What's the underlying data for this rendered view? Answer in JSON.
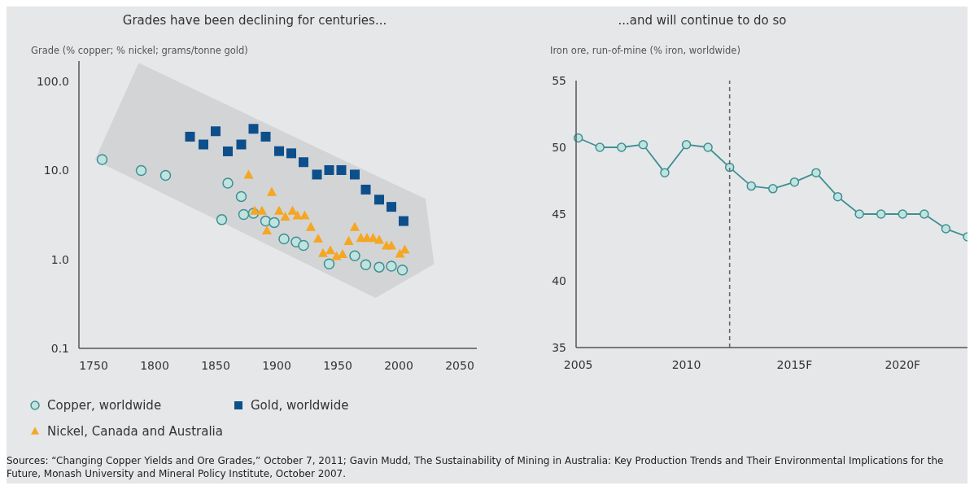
{
  "chart_data": [
    {
      "type": "scatter",
      "title": "Grades have been declining for centuries...",
      "ylabel": "Grade (% copper; % nickel; grams/tonne gold)",
      "log": "y",
      "xlim": [
        1738,
        2064
      ],
      "xticks": [
        1750,
        1800,
        1850,
        1900,
        1950,
        2000,
        2050
      ],
      "ylim": [
        0.1,
        170
      ],
      "yticks": [
        {
          "value": 100,
          "label": "100.0"
        },
        {
          "value": 10,
          "label": "10.0"
        },
        {
          "value": 1,
          "label": "1.0"
        },
        0.1
      ],
      "grid": false,
      "legend": "bottom left",
      "series": [
        {
          "type": "area",
          "color": "#d3d4d6",
          "x": [
            1751,
            1787,
            1981,
            2022,
            2029
          ],
          "values": [
            null,
            null,
            null,
            null,
            null
          ],
          "lower": [
            13.1,
            7.5,
            0.37,
            0.78,
            0.89
          ],
          "upper": [
            13.1,
            162,
            8.8,
            4.8,
            0.89
          ]
        },
        {
          "name": "Copper, worldwide",
          "color": "#3f8f93",
          "marker": "circle",
          "x": [
            1757,
            1789,
            1809,
            1860,
            1871,
            1855,
            1873,
            1881,
            1891,
            1898,
            1906,
            1916,
            1922,
            1943,
            1964,
            1973,
            1984,
            1994,
            2003
          ],
          "values": [
            13.3,
            10,
            8.8,
            7.2,
            5.1,
            2.8,
            3.2,
            3.3,
            2.7,
            2.6,
            1.7,
            1.57,
            1.44,
            0.89,
            1.1,
            0.87,
            0.82,
            0.84,
            0.76
          ]
        },
        {
          "name": "Gold, worldwide",
          "color": "#0d4f8b",
          "marker": "square",
          "x": [
            1829,
            1840,
            1850,
            1860,
            1871,
            1881,
            1891,
            1902,
            1912,
            1922,
            1933,
            1943,
            1953,
            1964,
            1973,
            1984,
            1994,
            2004
          ],
          "values": [
            24,
            19.6,
            27.6,
            16.4,
            19.6,
            29.4,
            24,
            16.5,
            15.6,
            12.4,
            9,
            10.1,
            10.1,
            9,
            6.1,
            4.7,
            3.9,
            2.7
          ]
        },
        {
          "name": "Nickel, Canada and Australia",
          "color": "#f5a623",
          "marker": "triangle",
          "x": [
            1877,
            1896,
            1882,
            1888,
            1892,
            1902,
            1907,
            1913,
            1917,
            1923,
            1928,
            1934,
            1938,
            1944,
            1949,
            1954,
            1959,
            1964,
            1969,
            1974,
            1979,
            1984,
            1990,
            1994,
            2001,
            2005
          ],
          "values": [
            8.9,
            5.7,
            3.5,
            3.5,
            2.1,
            3.5,
            3,
            3.5,
            3.1,
            3.1,
            2.3,
            1.7,
            1.17,
            1.26,
            1.08,
            1.14,
            1.6,
            2.3,
            1.73,
            1.73,
            1.73,
            1.65,
            1.42,
            1.42,
            1.15,
            1.28
          ]
        }
      ],
      "annotations": [
        "Sources: “Changing Copper Yields and Ore Grades,” October 7, 2011; Gavin Mudd, The Sustainability of Mining in Australia: Key Production Trends and Their Environmental Implications for the Future, Monash University and Mineral Policy Institute, October 2007."
      ]
    },
    {
      "type": "line",
      "title": "...and will continue to do so",
      "ylabel": "Iron ore, run-of-mine (% iron, worldwide)",
      "xlim": [
        2004.9,
        2023.3
      ],
      "xticks": [
        2005,
        2010,
        {
          "value": 2015,
          "label": "2015F"
        },
        {
          "value": 2020,
          "label": "2020F"
        }
      ],
      "ylim": [
        35,
        55
      ],
      "yticks": [
        35,
        40,
        45,
        50,
        55
      ],
      "grid": false,
      "legend": false,
      "marker": "circle",
      "line_style": "solid",
      "ref_lines": [
        {
          "axis": "x",
          "value": 2012,
          "color": "#666666",
          "line_style": "dashed"
        }
      ],
      "series": [
        {
          "color": "#3f8f93",
          "x": [
            2005,
            2006,
            2007,
            2008,
            2009,
            2010,
            2011,
            2012,
            2013,
            2014,
            2015,
            2016,
            2017,
            2018,
            2019,
            2020,
            2021,
            2022,
            2023
          ],
          "values": [
            50.7,
            50,
            50,
            50.2,
            48.1,
            50.2,
            50,
            48.5,
            47.1,
            46.9,
            47.4,
            48.1,
            46.3,
            45,
            45,
            45,
            45,
            43.9,
            43.3
          ]
        }
      ]
    }
  ]
}
